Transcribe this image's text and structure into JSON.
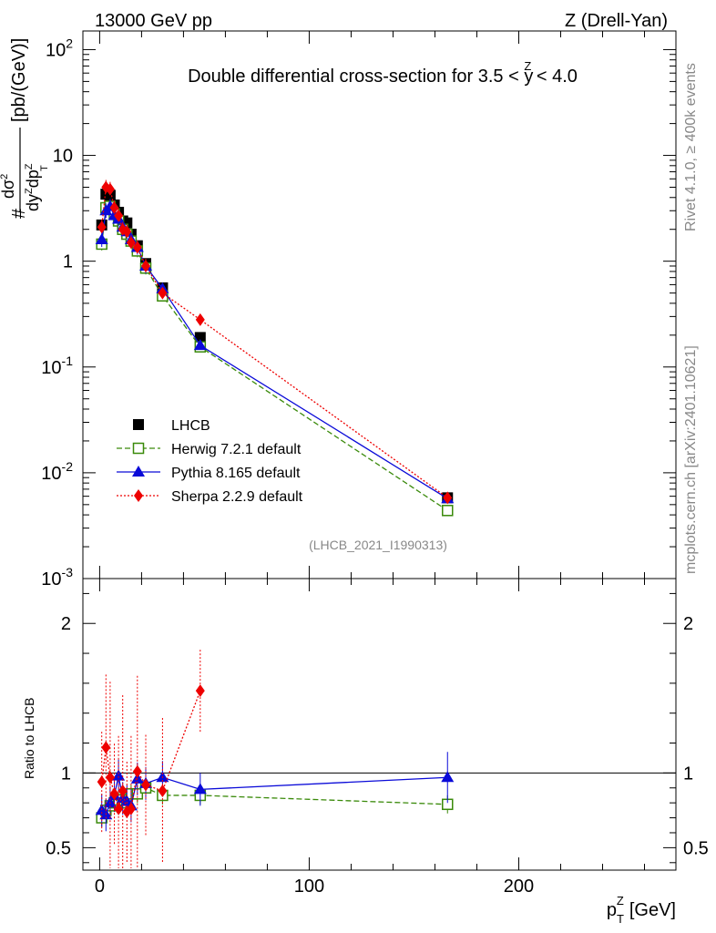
{
  "header": {
    "left": "13000 GeV pp",
    "right": "Z (Drell-Yan)"
  },
  "main_title": {
    "prefix": "Double differential cross-section for 3.5 < ",
    "var": "y",
    "var_sup": "Z",
    "suffix": " < 4.0"
  },
  "side_labels": {
    "rivet": "Rivet 4.1.0, ≥ 400k events",
    "mcplots": "mcplots.cern.ch [arXiv:2401.10621]"
  },
  "analysis_id": "(LHCB_2021_I1990313)",
  "ylabel_main": {
    "hash": "#",
    "numerator": "dσ",
    "num_sup": "2",
    "denominator": "dy",
    "den_sup": "Z",
    "den_mid": "dp",
    "den_sub": "T",
    "den_sub_sup": "Z",
    "units": "[pb/(GeV)]"
  },
  "ylabel_ratio": "Ratio to LHCB",
  "xlabel": {
    "base": "p",
    "sub": "T",
    "sup": "Z",
    "units": "[GeV]"
  },
  "chart_data": {
    "type": "scatter",
    "x": [
      1,
      3,
      5,
      7,
      9,
      11,
      13,
      15,
      18,
      22,
      30,
      48,
      166
    ],
    "xlim": [
      -8,
      275
    ],
    "xticks": [
      0,
      100,
      200
    ],
    "xtick_labels": [
      "0",
      "100",
      "200"
    ],
    "main_ylim": [
      0.001,
      150
    ],
    "main_yscale": "log",
    "main_ytick_labels": [
      "10^-3",
      "10^-2",
      "10^-1",
      "1",
      "10",
      "10^2"
    ],
    "ratio_ylim": [
      0.35,
      2.3
    ],
    "ratio_ytick_labels": [
      "0.5",
      "1",
      "2"
    ],
    "legend_position": "middle-left",
    "series": [
      {
        "name": "LHCB",
        "color": "#000000",
        "marker": "square",
        "line": "none",
        "values": [
          2.2,
          4.3,
          4.2,
          3.4,
          2.9,
          2.4,
          2.3,
          1.8,
          1.4,
          0.95,
          0.56,
          0.19,
          0.0058
        ],
        "ratio": [
          1,
          1,
          1,
          1,
          1,
          1,
          1,
          1,
          1,
          1,
          1,
          1,
          1
        ]
      },
      {
        "name": "Herwig 7.2.1 default",
        "color": "#3a8a0a",
        "marker": "open-square",
        "line": "dashed",
        "values": [
          1.45,
          3.2,
          3.3,
          2.8,
          2.4,
          2.0,
          1.8,
          1.55,
          1.25,
          0.86,
          0.47,
          0.155,
          0.0044
        ],
        "ratio": [
          0.7,
          0.75,
          0.78,
          0.8,
          0.82,
          0.82,
          0.8,
          0.86,
          0.86,
          0.9,
          0.85,
          0.85,
          0.79
        ]
      },
      {
        "name": "Pythia 8.165 default",
        "color": "#0a0ad8",
        "marker": "triangle",
        "line": "solid",
        "values": [
          1.6,
          3.0,
          3.3,
          2.7,
          2.5,
          2.1,
          1.9,
          1.6,
          1.35,
          0.9,
          0.55,
          0.16,
          0.0057
        ],
        "ratio": [
          0.75,
          0.72,
          0.8,
          0.85,
          0.98,
          0.83,
          0.81,
          0.78,
          0.96,
          0.93,
          0.97,
          0.89,
          0.97
        ]
      },
      {
        "name": "Sherpa 2.2.9 default",
        "color": "#ee0000",
        "marker": "diamond",
        "line": "dotted",
        "values": [
          2.1,
          5.0,
          4.8,
          3.2,
          2.7,
          2.0,
          1.9,
          1.5,
          1.35,
          0.9,
          0.5,
          0.28,
          0.0058
        ],
        "ratio": [
          0.94,
          1.17,
          0.97,
          0.86,
          0.76,
          0.88,
          0.74,
          0.76,
          1.01,
          0.92,
          0.88,
          1.55,
          null
        ]
      }
    ]
  }
}
